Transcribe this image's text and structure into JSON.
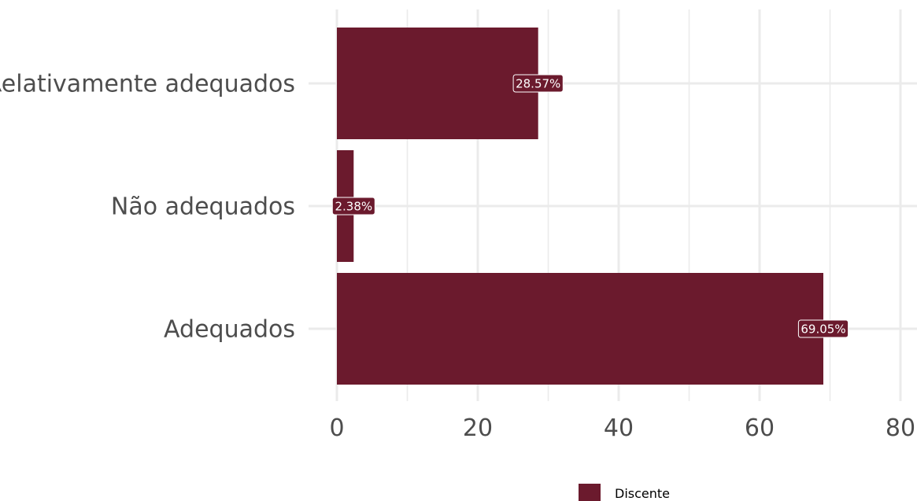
{
  "chart_data": {
    "type": "bar",
    "orientation": "horizontal",
    "categories": [
      "Adequados",
      "Não adequados",
      "Relativamente adequados"
    ],
    "series": [
      {
        "name": "Discente",
        "values": [
          69.05,
          2.38,
          28.57
        ],
        "labels": [
          "69.05%",
          "2.38%",
          "28.57%"
        ],
        "color": "#6b1a2d"
      }
    ],
    "xlim": [
      0,
      80
    ],
    "xticks": [
      0,
      20,
      40,
      60,
      80
    ],
    "xtick_labels": [
      "0",
      "20",
      "40",
      "60",
      "80"
    ],
    "grid": true,
    "legend_position": "bottom"
  }
}
